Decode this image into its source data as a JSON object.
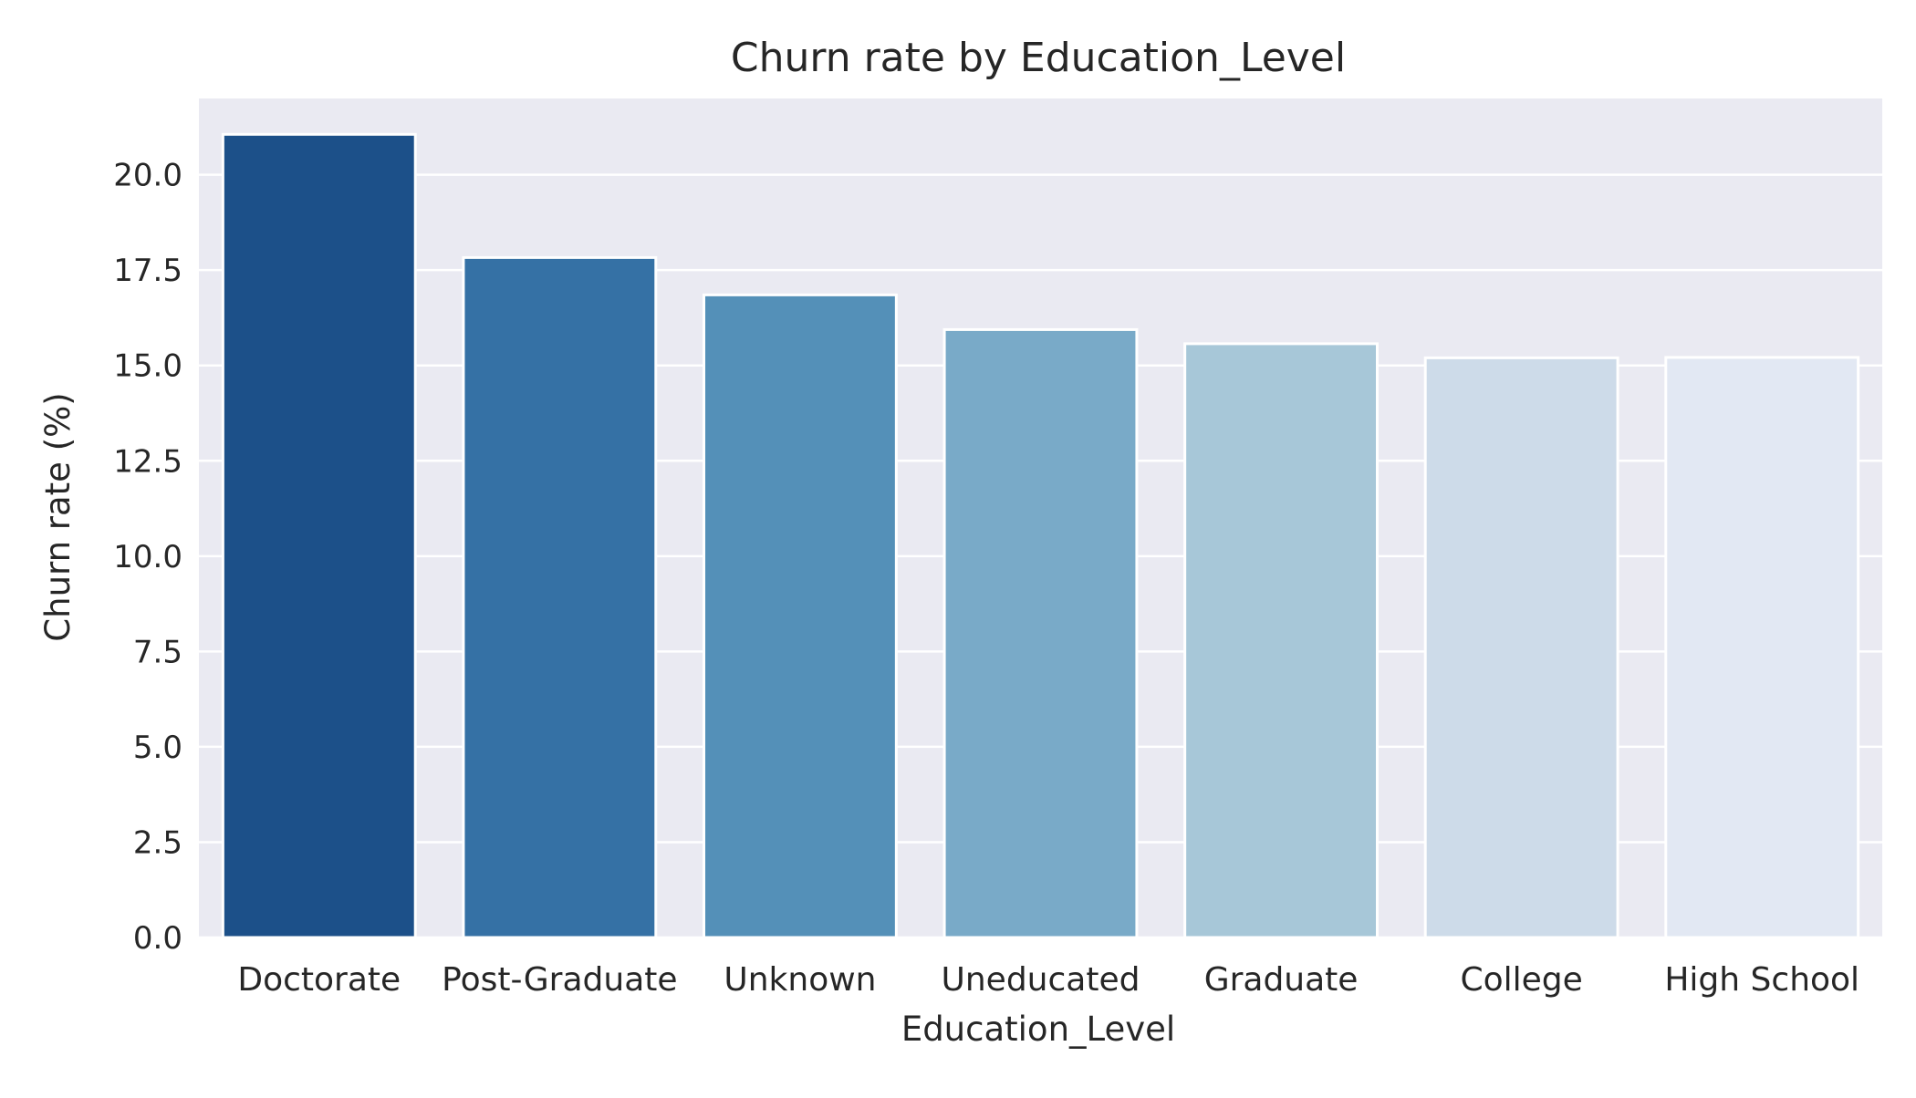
{
  "chart_data": {
    "type": "bar",
    "title": "Churn rate by Education_Level",
    "xlabel": "Education_Level",
    "ylabel": "Churn rate (%)",
    "categories": [
      "Doctorate",
      "Post-Graduate",
      "Unknown",
      "Uneducated",
      "Graduate",
      "College",
      "High School"
    ],
    "values": [
      21.06,
      17.83,
      16.85,
      15.94,
      15.57,
      15.2,
      15.21
    ],
    "ylim": [
      0,
      22
    ],
    "yticks": [
      "0.0",
      "2.5",
      "5.0",
      "7.5",
      "10.0",
      "12.5",
      "15.0",
      "17.5",
      "20.0"
    ],
    "ytick_values": [
      0,
      2.5,
      5,
      7.5,
      10,
      12.5,
      15,
      17.5,
      20
    ],
    "grid": true,
    "colors": {
      "background": "#eaeaf2",
      "grid": "#ffffff",
      "bars": [
        "#1c5089",
        "#3571a5",
        "#5490b8",
        "#79aac8",
        "#a7c7d8",
        "#cddbe9",
        "#e2e8f3"
      ],
      "bar_edge": "#ffffff"
    }
  }
}
